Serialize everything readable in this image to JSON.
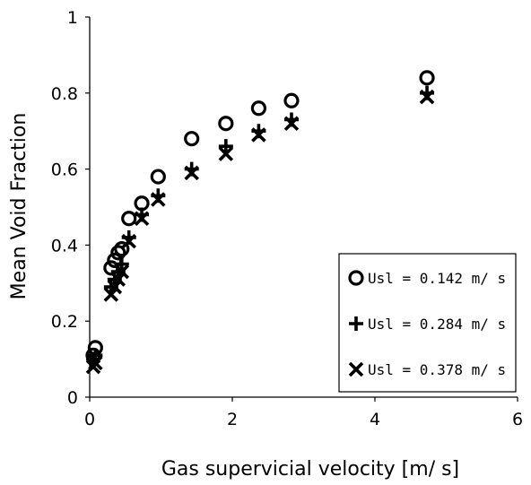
{
  "chart_data": {
    "type": "scatter",
    "xlabel": "Gas supervicial velocity [m/ s]",
    "ylabel": "Mean Void Fraction",
    "xlim": [
      0,
      6
    ],
    "ylim": [
      0,
      1
    ],
    "xticks": [
      0,
      2,
      4,
      6
    ],
    "yticks": [
      0,
      0.2,
      0.4,
      0.6,
      0.8,
      1
    ],
    "xtick_labels": [
      "0",
      "2",
      "4",
      "6"
    ],
    "ytick_labels": [
      "0",
      "0.2",
      "0.4",
      "0.6",
      "0.8",
      "1"
    ],
    "grid": false,
    "legend_position": "bottom-right",
    "series": [
      {
        "name": "Usl = 0.142 m/ s",
        "marker": "circle",
        "x": [
          0.05,
          0.08,
          0.3,
          0.35,
          0.4,
          0.45,
          0.55,
          0.73,
          0.96,
          1.43,
          1.91,
          2.37,
          2.83,
          4.73
        ],
        "y": [
          0.11,
          0.13,
          0.34,
          0.36,
          0.38,
          0.39,
          0.47,
          0.51,
          0.58,
          0.68,
          0.72,
          0.76,
          0.78,
          0.84
        ]
      },
      {
        "name": "Usl = 0.284 m/ s",
        "marker": "plus",
        "x": [
          0.05,
          0.08,
          0.3,
          0.35,
          0.4,
          0.45,
          0.55,
          0.73,
          0.96,
          1.43,
          1.91,
          2.37,
          2.83,
          4.73
        ],
        "y": [
          0.1,
          0.11,
          0.29,
          0.31,
          0.33,
          0.35,
          0.42,
          0.48,
          0.53,
          0.6,
          0.66,
          0.7,
          0.73,
          0.8
        ]
      },
      {
        "name": "Usl = 0.378 m/ s",
        "marker": "x",
        "x": [
          0.05,
          0.08,
          0.3,
          0.35,
          0.4,
          0.45,
          0.55,
          0.73,
          0.96,
          1.43,
          1.91,
          2.37,
          2.83,
          4.73
        ],
        "y": [
          0.08,
          0.09,
          0.27,
          0.29,
          0.31,
          0.33,
          0.41,
          0.47,
          0.52,
          0.59,
          0.64,
          0.69,
          0.72,
          0.79
        ]
      }
    ]
  }
}
